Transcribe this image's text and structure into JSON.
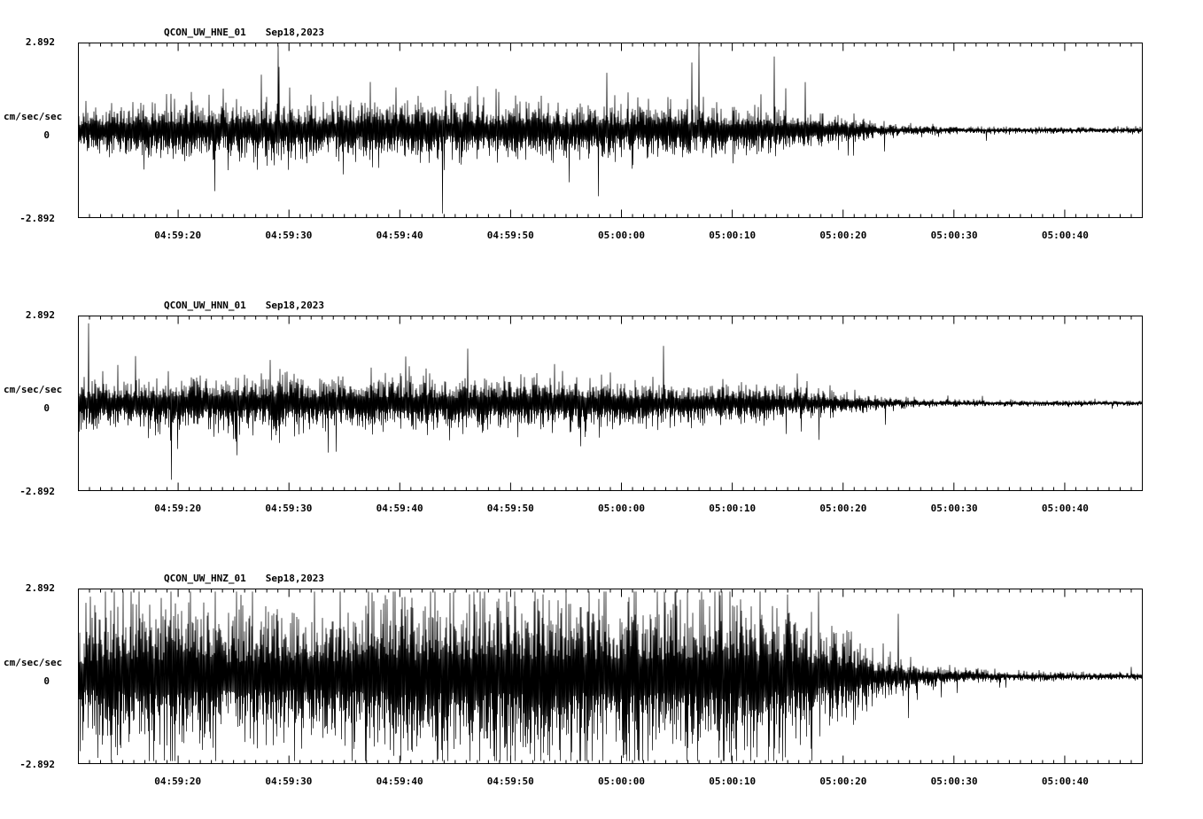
{
  "page": {
    "background": "#ffffff",
    "trace_color": "#000000"
  },
  "chart_data": [
    {
      "type": "line",
      "station": "QCON_UW_HNE_01",
      "date": "Sep18,2023",
      "ylabel": "cm/sec/sec",
      "y_ticks": [
        "2.892",
        "0",
        "-2.892"
      ],
      "ylim": [
        -2.892,
        2.892
      ],
      "x_ticks": {
        "labels": [
          "04:59:20",
          "04:59:30",
          "04:59:40",
          "04:59:50",
          "05:00:00",
          "05:00:10",
          "05:00:20",
          "05:00:30",
          "05:00:40"
        ],
        "offsets_s": [
          9,
          19,
          29,
          39,
          49,
          59,
          69,
          79,
          89
        ]
      },
      "axis": {
        "x_range_s": [
          0,
          96
        ],
        "minor_tick_s": 1,
        "major_tick_s": 10,
        "major_offset_s": 9,
        "grid": false
      },
      "seed": 20230918,
      "envelope": [
        [
          0,
          0.45
        ],
        [
          4,
          0.6
        ],
        [
          8,
          0.62
        ],
        [
          15,
          0.68
        ],
        [
          22,
          0.62
        ],
        [
          28,
          0.7
        ],
        [
          34,
          0.62
        ],
        [
          40,
          0.66
        ],
        [
          46,
          0.6
        ],
        [
          52,
          0.62
        ],
        [
          58,
          0.55
        ],
        [
          62,
          0.5
        ],
        [
          66,
          0.42
        ],
        [
          69,
          0.3
        ],
        [
          72,
          0.18
        ],
        [
          75,
          0.11
        ],
        [
          80,
          0.08
        ],
        [
          88,
          0.07
        ],
        [
          96,
          0.07
        ]
      ]
    },
    {
      "type": "line",
      "station": "QCON_UW_HNN_01",
      "date": "Sep18,2023",
      "ylabel": "cm/sec/sec",
      "y_ticks": [
        "2.892",
        "0",
        "-2.892"
      ],
      "ylim": [
        -2.892,
        2.892
      ],
      "x_ticks": {
        "labels": [
          "04:59:20",
          "04:59:30",
          "04:59:40",
          "04:59:50",
          "05:00:00",
          "05:00:10",
          "05:00:20",
          "05:00:30",
          "05:00:40"
        ],
        "offsets_s": [
          9,
          19,
          29,
          39,
          49,
          59,
          69,
          79,
          89
        ]
      },
      "axis": {
        "x_range_s": [
          0,
          96
        ],
        "minor_tick_s": 1,
        "major_tick_s": 10,
        "major_offset_s": 9,
        "grid": false
      },
      "seed": 20230919,
      "envelope": [
        [
          0,
          0.5
        ],
        [
          5,
          0.55
        ],
        [
          10,
          0.6
        ],
        [
          15,
          0.62
        ],
        [
          20,
          0.58
        ],
        [
          25,
          0.6
        ],
        [
          30,
          0.62
        ],
        [
          35,
          0.58
        ],
        [
          40,
          0.6
        ],
        [
          45,
          0.55
        ],
        [
          50,
          0.5
        ],
        [
          55,
          0.45
        ],
        [
          60,
          0.42
        ],
        [
          64,
          0.38
        ],
        [
          68,
          0.28
        ],
        [
          71,
          0.18
        ],
        [
          74,
          0.12
        ],
        [
          78,
          0.08
        ],
        [
          85,
          0.06
        ],
        [
          96,
          0.06
        ]
      ]
    },
    {
      "type": "line",
      "station": "QCON_UW_HNZ_01",
      "date": "Sep18,2023",
      "ylabel": "cm/sec/sec",
      "y_ticks": [
        "2.892",
        "0",
        "-2.892"
      ],
      "ylim": [
        -2.892,
        2.892
      ],
      "x_ticks": {
        "labels": [
          "04:59:20",
          "04:59:30",
          "04:59:40",
          "04:59:50",
          "05:00:00",
          "05:00:10",
          "05:00:20",
          "05:00:30",
          "05:00:40"
        ],
        "offsets_s": [
          9,
          19,
          29,
          39,
          49,
          59,
          69,
          79,
          89
        ]
      },
      "axis": {
        "x_range_s": [
          0,
          96
        ],
        "minor_tick_s": 1,
        "major_tick_s": 10,
        "major_offset_s": 9,
        "grid": false
      },
      "seed": 20230920,
      "envelope": [
        [
          0,
          1.3
        ],
        [
          4,
          1.7
        ],
        [
          8,
          1.8
        ],
        [
          12,
          1.6
        ],
        [
          16,
          1.5
        ],
        [
          20,
          1.4
        ],
        [
          24,
          1.55
        ],
        [
          28,
          1.7
        ],
        [
          32,
          1.8
        ],
        [
          36,
          1.9
        ],
        [
          40,
          1.85
        ],
        [
          44,
          1.8
        ],
        [
          48,
          1.9
        ],
        [
          52,
          1.85
        ],
        [
          56,
          1.8
        ],
        [
          60,
          1.75
        ],
        [
          63,
          1.6
        ],
        [
          66,
          1.35
        ],
        [
          69,
          1.0
        ],
        [
          72,
          0.6
        ],
        [
          75,
          0.35
        ],
        [
          78,
          0.2
        ],
        [
          82,
          0.12
        ],
        [
          88,
          0.1
        ],
        [
          96,
          0.09
        ]
      ]
    }
  ]
}
